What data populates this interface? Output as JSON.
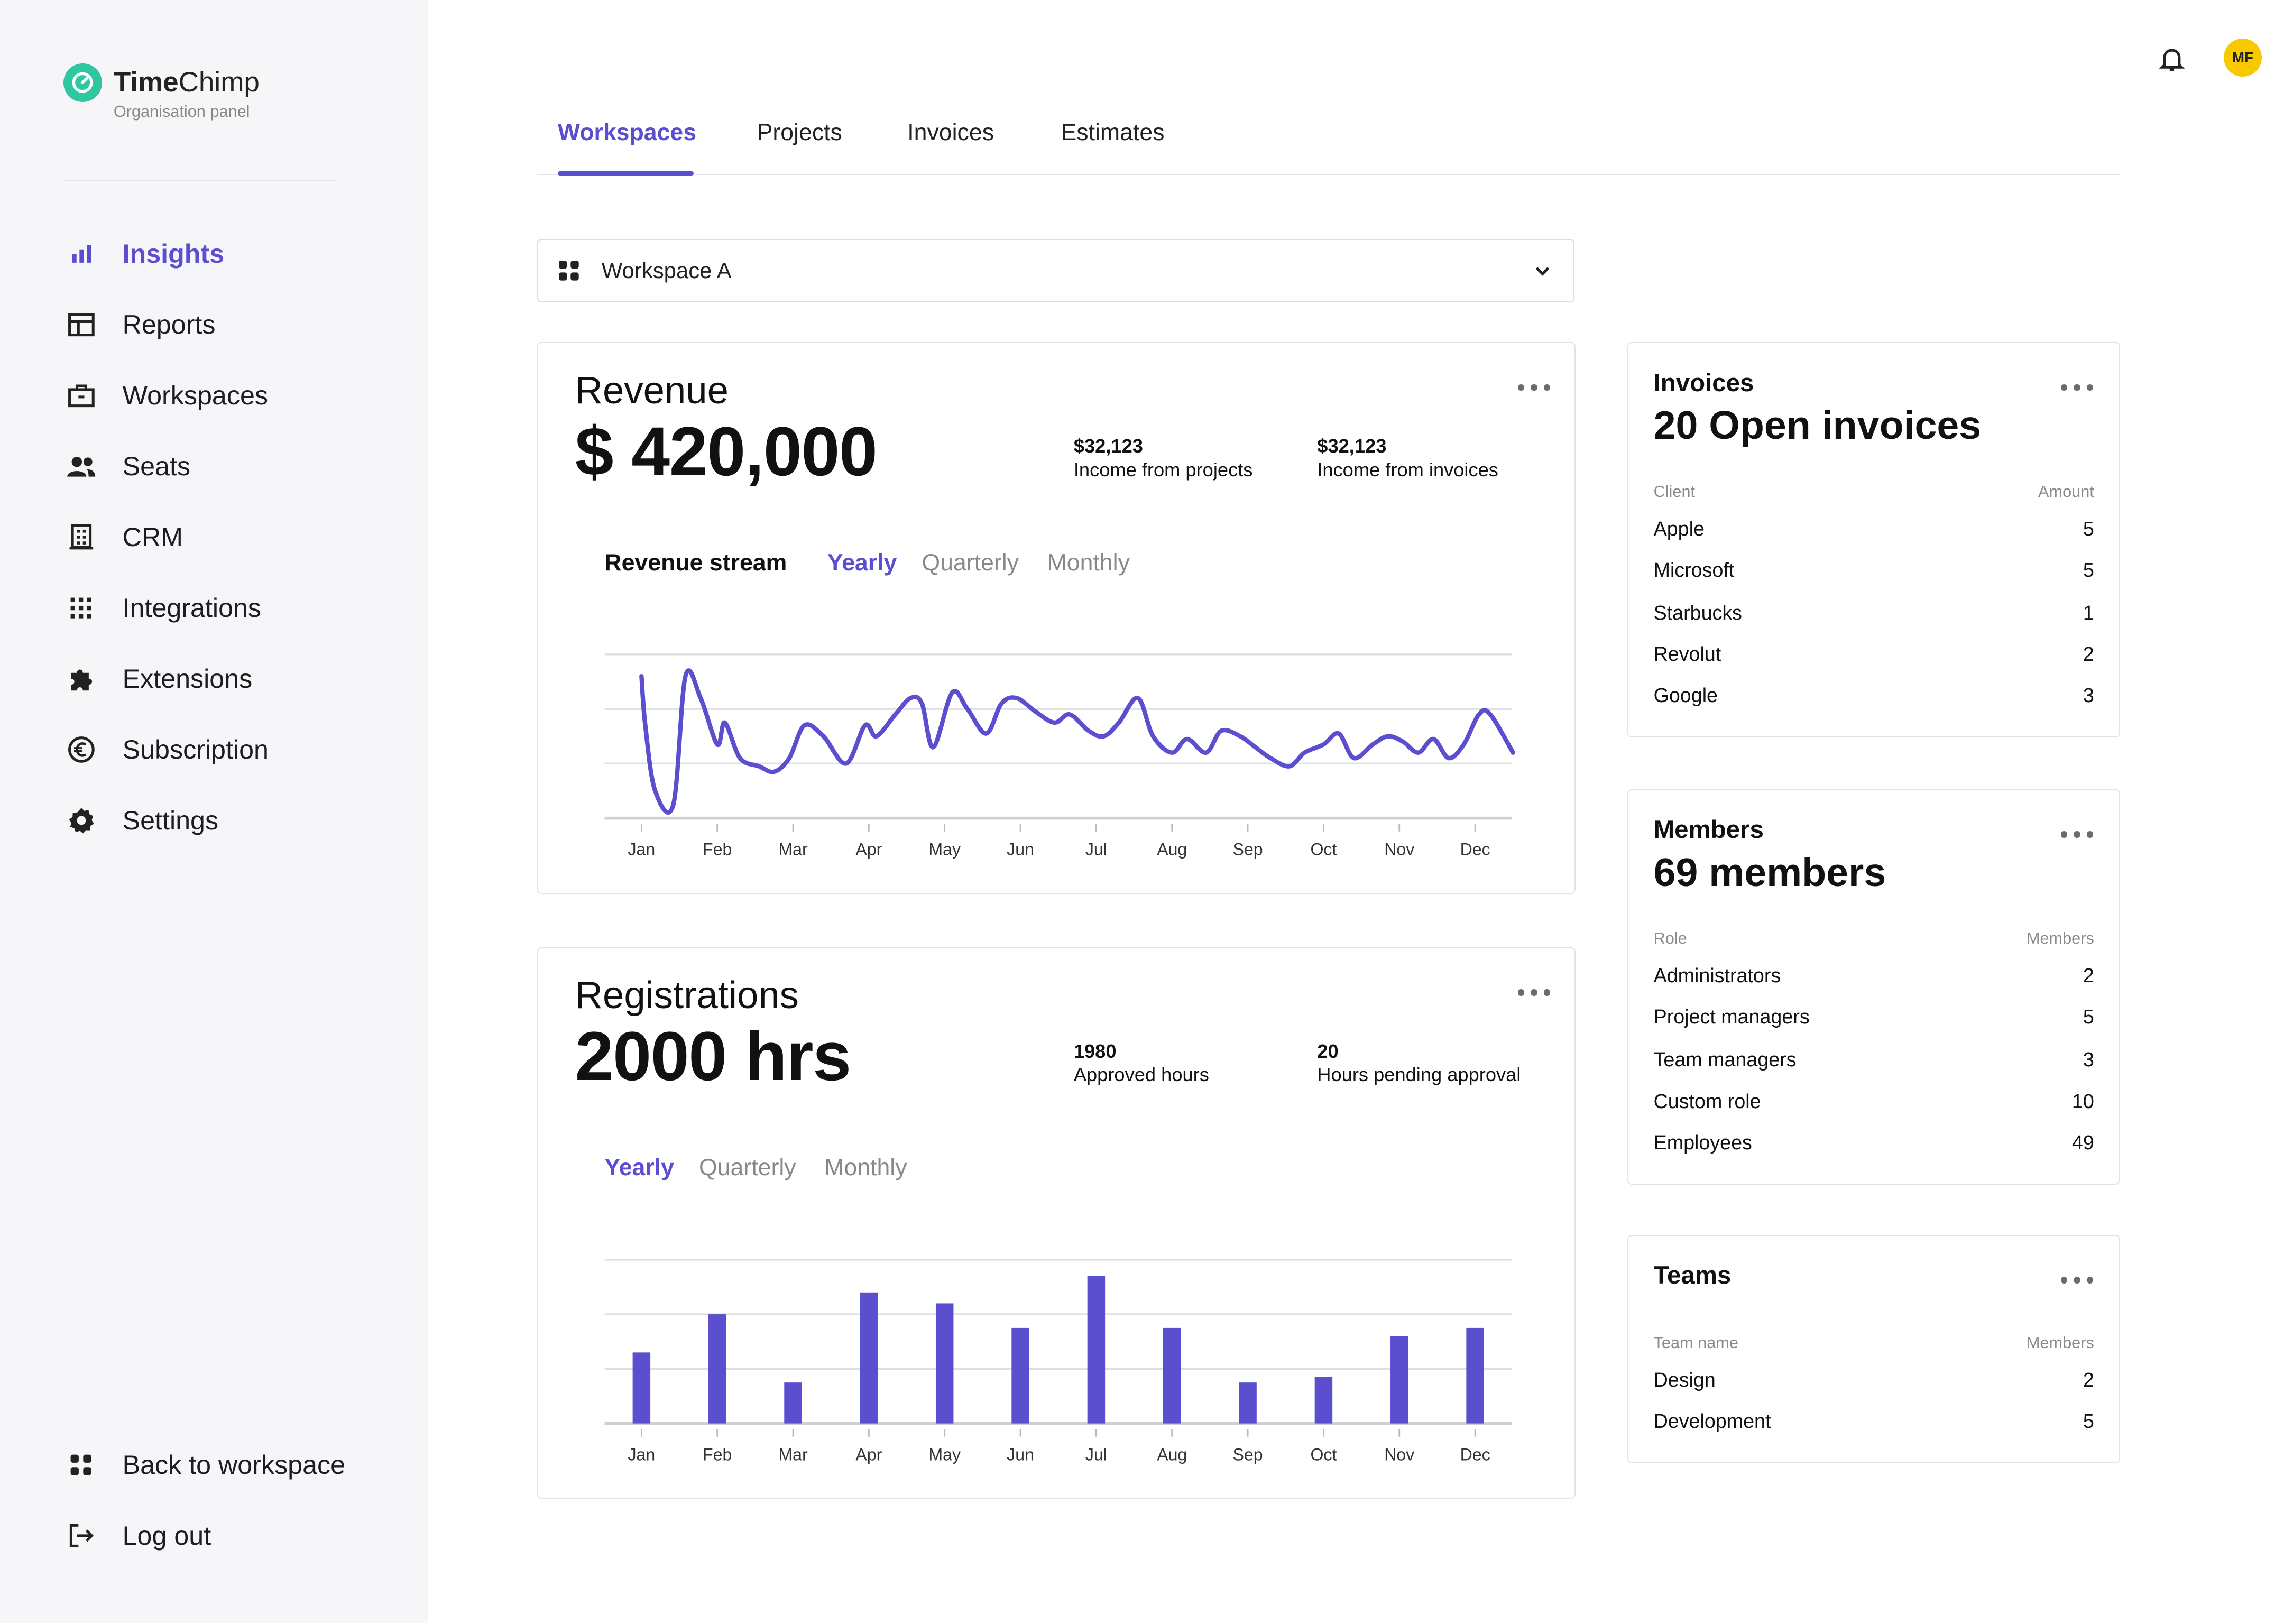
{
  "brand": {
    "name_bold": "Time",
    "name_rest": "Chimp",
    "subtitle": "Organisation panel"
  },
  "sidebar": {
    "items": [
      {
        "label": "Insights",
        "icon": "bar-chart-icon",
        "active": true
      },
      {
        "label": "Reports",
        "icon": "table-icon"
      },
      {
        "label": "Workspaces",
        "icon": "briefcase-icon"
      },
      {
        "label": "Seats",
        "icon": "people-icon"
      },
      {
        "label": "CRM",
        "icon": "building-icon"
      },
      {
        "label": "Integrations",
        "icon": "apps-grid-icon"
      },
      {
        "label": "Extensions",
        "icon": "puzzle-icon"
      },
      {
        "label": "Subscription",
        "icon": "euro-icon"
      },
      {
        "label": "Settings",
        "icon": "gear-icon"
      }
    ],
    "bottom": [
      {
        "label": "Back to workspace",
        "icon": "grid-icon"
      },
      {
        "label": "Log out",
        "icon": "logout-icon"
      }
    ]
  },
  "header": {
    "avatar_initials": "MF",
    "avatar_color": "#f9c900"
  },
  "tabs": [
    {
      "label": "Workspaces",
      "active": true
    },
    {
      "label": "Projects"
    },
    {
      "label": "Invoices"
    },
    {
      "label": "Estimates"
    }
  ],
  "workspace_select": {
    "value": "Workspace A"
  },
  "revenue": {
    "title": "Revenue",
    "value": "$ 420,000",
    "stats": [
      {
        "value": "$32,123",
        "label": "Income from projects"
      },
      {
        "value": "$32,123",
        "label": "Income from invoices"
      }
    ],
    "chart_label": "Revenue stream",
    "periods": [
      "Yearly",
      "Quarterly",
      "Monthly"
    ],
    "active_period": "Yearly"
  },
  "registrations": {
    "title": "Registrations",
    "value": "2000 hrs",
    "stats": [
      {
        "value": "1980",
        "label": "Approved hours"
      },
      {
        "value": "20",
        "label": "Hours pending approval"
      }
    ],
    "periods": [
      "Yearly",
      "Quarterly",
      "Monthly"
    ],
    "active_period": "Yearly"
  },
  "chart_data": [
    {
      "type": "line",
      "title": "Revenue stream",
      "x": [
        "Jan",
        "Feb",
        "Mar",
        "Apr",
        "May",
        "Jun",
        "Jul",
        "Aug",
        "Sep",
        "Oct",
        "Nov",
        "Dec"
      ],
      "y_ticks_hidden": true,
      "ylim": [
        0,
        3
      ],
      "grid": true,
      "series": [
        {
          "points": [
            [
              0.0,
              2.6
            ],
            [
              0.05,
              1.7
            ],
            [
              0.18,
              0.5
            ],
            [
              0.42,
              0.25
            ],
            [
              0.58,
              2.6
            ],
            [
              0.78,
              2.2
            ],
            [
              1.0,
              1.35
            ],
            [
              1.1,
              1.75
            ],
            [
              1.3,
              1.1
            ],
            [
              1.55,
              0.95
            ],
            [
              1.75,
              0.85
            ],
            [
              1.95,
              1.1
            ],
            [
              2.15,
              1.7
            ],
            [
              2.4,
              1.5
            ],
            [
              2.7,
              1.0
            ],
            [
              2.95,
              1.7
            ],
            [
              3.1,
              1.5
            ],
            [
              3.35,
              1.9
            ],
            [
              3.55,
              2.2
            ],
            [
              3.7,
              2.1
            ],
            [
              3.85,
              1.3
            ],
            [
              4.1,
              2.3
            ],
            [
              4.3,
              2.0
            ],
            [
              4.55,
              1.55
            ],
            [
              4.75,
              2.1
            ],
            [
              4.95,
              2.2
            ],
            [
              5.2,
              1.95
            ],
            [
              5.45,
              1.75
            ],
            [
              5.65,
              1.9
            ],
            [
              5.9,
              1.6
            ],
            [
              6.1,
              1.5
            ],
            [
              6.3,
              1.75
            ],
            [
              6.55,
              2.2
            ],
            [
              6.75,
              1.5
            ],
            [
              7.0,
              1.2
            ],
            [
              7.2,
              1.45
            ],
            [
              7.45,
              1.2
            ],
            [
              7.65,
              1.6
            ],
            [
              7.9,
              1.5
            ],
            [
              8.1,
              1.3
            ],
            [
              8.3,
              1.1
            ],
            [
              8.55,
              0.95
            ],
            [
              8.75,
              1.2
            ],
            [
              9.0,
              1.35
            ],
            [
              9.2,
              1.55
            ],
            [
              9.4,
              1.1
            ],
            [
              9.65,
              1.35
            ],
            [
              9.85,
              1.5
            ],
            [
              10.05,
              1.4
            ],
            [
              10.25,
              1.2
            ],
            [
              10.45,
              1.45
            ],
            [
              10.65,
              1.1
            ],
            [
              10.85,
              1.35
            ],
            [
              11.05,
              1.9
            ],
            [
              11.2,
              1.9
            ],
            [
              11.5,
              1.2
            ]
          ]
        }
      ],
      "color": "#5b4fd0"
    },
    {
      "type": "bar",
      "x": [
        "Jan",
        "Feb",
        "Mar",
        "Apr",
        "May",
        "Jun",
        "Jul",
        "Aug",
        "Sep",
        "Oct",
        "Nov",
        "Dec"
      ],
      "values": [
        1.3,
        2.0,
        0.75,
        2.4,
        2.2,
        1.75,
        2.7,
        1.75,
        0.75,
        0.85,
        1.6,
        1.75
      ],
      "ylim": [
        0,
        3
      ],
      "y_ticks_hidden": true,
      "grid": true,
      "color": "#5b4fd0"
    }
  ],
  "invoices_card": {
    "title": "Invoices",
    "headline": "20 Open invoices",
    "columns": [
      "Client",
      "Amount"
    ],
    "rows": [
      [
        "Apple",
        "5"
      ],
      [
        "Microsoft",
        "5"
      ],
      [
        "Starbucks",
        "1"
      ],
      [
        "Revolut",
        "2"
      ],
      [
        "Google",
        "3"
      ]
    ]
  },
  "members_card": {
    "title": "Members",
    "headline": "69 members",
    "columns": [
      "Role",
      "Members"
    ],
    "rows": [
      [
        "Administrators",
        "2"
      ],
      [
        "Project managers",
        "5"
      ],
      [
        "Team managers",
        "3"
      ],
      [
        "Custom role",
        "10"
      ],
      [
        "Employees",
        "49"
      ]
    ]
  },
  "teams_card": {
    "title": "Teams",
    "columns": [
      "Team name",
      "Members"
    ],
    "rows": [
      [
        "Design",
        "2"
      ],
      [
        "Development",
        "5"
      ]
    ]
  }
}
